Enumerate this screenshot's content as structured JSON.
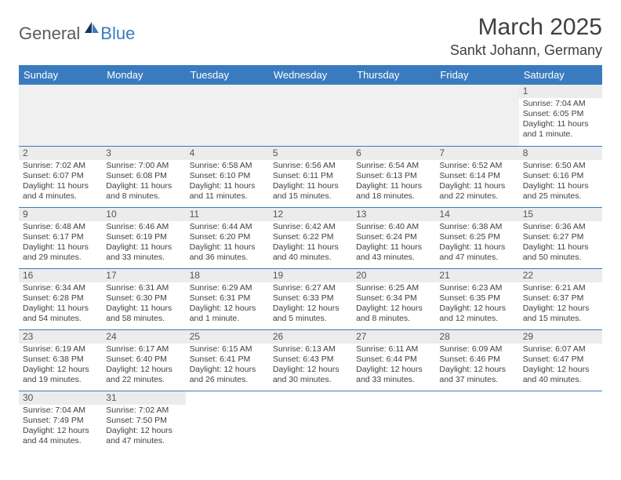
{
  "branding": {
    "logo_part1": "General",
    "logo_part2": "Blue",
    "logo_color_primary": "#5b5b5b",
    "logo_color_accent": "#3a7bbf"
  },
  "header": {
    "month_title": "March 2025",
    "location": "Sankt Johann, Germany"
  },
  "styling": {
    "header_bg": "#3a7bbf",
    "header_text": "#ffffff",
    "daynum_bg": "#ececec",
    "border_color": "#3a7bbf",
    "body_text": "#404040",
    "cell_fontsize": 10.5
  },
  "weekdays": [
    "Sunday",
    "Monday",
    "Tuesday",
    "Wednesday",
    "Thursday",
    "Friday",
    "Saturday"
  ],
  "weeks": [
    [
      null,
      null,
      null,
      null,
      null,
      null,
      {
        "day": "1",
        "sunrise": "Sunrise: 7:04 AM",
        "sunset": "Sunset: 6:05 PM",
        "daylight": "Daylight: 11 hours and 1 minute."
      }
    ],
    [
      {
        "day": "2",
        "sunrise": "Sunrise: 7:02 AM",
        "sunset": "Sunset: 6:07 PM",
        "daylight": "Daylight: 11 hours and 4 minutes."
      },
      {
        "day": "3",
        "sunrise": "Sunrise: 7:00 AM",
        "sunset": "Sunset: 6:08 PM",
        "daylight": "Daylight: 11 hours and 8 minutes."
      },
      {
        "day": "4",
        "sunrise": "Sunrise: 6:58 AM",
        "sunset": "Sunset: 6:10 PM",
        "daylight": "Daylight: 11 hours and 11 minutes."
      },
      {
        "day": "5",
        "sunrise": "Sunrise: 6:56 AM",
        "sunset": "Sunset: 6:11 PM",
        "daylight": "Daylight: 11 hours and 15 minutes."
      },
      {
        "day": "6",
        "sunrise": "Sunrise: 6:54 AM",
        "sunset": "Sunset: 6:13 PM",
        "daylight": "Daylight: 11 hours and 18 minutes."
      },
      {
        "day": "7",
        "sunrise": "Sunrise: 6:52 AM",
        "sunset": "Sunset: 6:14 PM",
        "daylight": "Daylight: 11 hours and 22 minutes."
      },
      {
        "day": "8",
        "sunrise": "Sunrise: 6:50 AM",
        "sunset": "Sunset: 6:16 PM",
        "daylight": "Daylight: 11 hours and 25 minutes."
      }
    ],
    [
      {
        "day": "9",
        "sunrise": "Sunrise: 6:48 AM",
        "sunset": "Sunset: 6:17 PM",
        "daylight": "Daylight: 11 hours and 29 minutes."
      },
      {
        "day": "10",
        "sunrise": "Sunrise: 6:46 AM",
        "sunset": "Sunset: 6:19 PM",
        "daylight": "Daylight: 11 hours and 33 minutes."
      },
      {
        "day": "11",
        "sunrise": "Sunrise: 6:44 AM",
        "sunset": "Sunset: 6:20 PM",
        "daylight": "Daylight: 11 hours and 36 minutes."
      },
      {
        "day": "12",
        "sunrise": "Sunrise: 6:42 AM",
        "sunset": "Sunset: 6:22 PM",
        "daylight": "Daylight: 11 hours and 40 minutes."
      },
      {
        "day": "13",
        "sunrise": "Sunrise: 6:40 AM",
        "sunset": "Sunset: 6:24 PM",
        "daylight": "Daylight: 11 hours and 43 minutes."
      },
      {
        "day": "14",
        "sunrise": "Sunrise: 6:38 AM",
        "sunset": "Sunset: 6:25 PM",
        "daylight": "Daylight: 11 hours and 47 minutes."
      },
      {
        "day": "15",
        "sunrise": "Sunrise: 6:36 AM",
        "sunset": "Sunset: 6:27 PM",
        "daylight": "Daylight: 11 hours and 50 minutes."
      }
    ],
    [
      {
        "day": "16",
        "sunrise": "Sunrise: 6:34 AM",
        "sunset": "Sunset: 6:28 PM",
        "daylight": "Daylight: 11 hours and 54 minutes."
      },
      {
        "day": "17",
        "sunrise": "Sunrise: 6:31 AM",
        "sunset": "Sunset: 6:30 PM",
        "daylight": "Daylight: 11 hours and 58 minutes."
      },
      {
        "day": "18",
        "sunrise": "Sunrise: 6:29 AM",
        "sunset": "Sunset: 6:31 PM",
        "daylight": "Daylight: 12 hours and 1 minute."
      },
      {
        "day": "19",
        "sunrise": "Sunrise: 6:27 AM",
        "sunset": "Sunset: 6:33 PM",
        "daylight": "Daylight: 12 hours and 5 minutes."
      },
      {
        "day": "20",
        "sunrise": "Sunrise: 6:25 AM",
        "sunset": "Sunset: 6:34 PM",
        "daylight": "Daylight: 12 hours and 8 minutes."
      },
      {
        "day": "21",
        "sunrise": "Sunrise: 6:23 AM",
        "sunset": "Sunset: 6:35 PM",
        "daylight": "Daylight: 12 hours and 12 minutes."
      },
      {
        "day": "22",
        "sunrise": "Sunrise: 6:21 AM",
        "sunset": "Sunset: 6:37 PM",
        "daylight": "Daylight: 12 hours and 15 minutes."
      }
    ],
    [
      {
        "day": "23",
        "sunrise": "Sunrise: 6:19 AM",
        "sunset": "Sunset: 6:38 PM",
        "daylight": "Daylight: 12 hours and 19 minutes."
      },
      {
        "day": "24",
        "sunrise": "Sunrise: 6:17 AM",
        "sunset": "Sunset: 6:40 PM",
        "daylight": "Daylight: 12 hours and 22 minutes."
      },
      {
        "day": "25",
        "sunrise": "Sunrise: 6:15 AM",
        "sunset": "Sunset: 6:41 PM",
        "daylight": "Daylight: 12 hours and 26 minutes."
      },
      {
        "day": "26",
        "sunrise": "Sunrise: 6:13 AM",
        "sunset": "Sunset: 6:43 PM",
        "daylight": "Daylight: 12 hours and 30 minutes."
      },
      {
        "day": "27",
        "sunrise": "Sunrise: 6:11 AM",
        "sunset": "Sunset: 6:44 PM",
        "daylight": "Daylight: 12 hours and 33 minutes."
      },
      {
        "day": "28",
        "sunrise": "Sunrise: 6:09 AM",
        "sunset": "Sunset: 6:46 PM",
        "daylight": "Daylight: 12 hours and 37 minutes."
      },
      {
        "day": "29",
        "sunrise": "Sunrise: 6:07 AM",
        "sunset": "Sunset: 6:47 PM",
        "daylight": "Daylight: 12 hours and 40 minutes."
      }
    ],
    [
      {
        "day": "30",
        "sunrise": "Sunrise: 7:04 AM",
        "sunset": "Sunset: 7:49 PM",
        "daylight": "Daylight: 12 hours and 44 minutes."
      },
      {
        "day": "31",
        "sunrise": "Sunrise: 7:02 AM",
        "sunset": "Sunset: 7:50 PM",
        "daylight": "Daylight: 12 hours and 47 minutes."
      },
      null,
      null,
      null,
      null,
      null
    ]
  ]
}
